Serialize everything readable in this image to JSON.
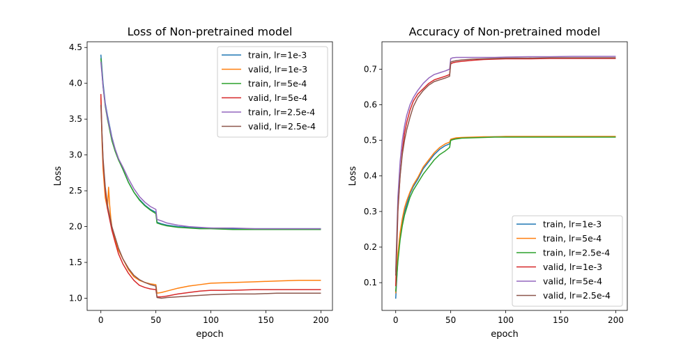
{
  "chart_data": [
    {
      "type": "line",
      "title": "Loss of Non-pretrained model",
      "xlabel": "epoch",
      "ylabel": "Loss",
      "xlim": [
        -12.5,
        210.5
      ],
      "ylim": [
        0.83,
        4.58
      ],
      "xticks": [
        0,
        50,
        100,
        150,
        200
      ],
      "yticks": [
        1.0,
        1.5,
        2.0,
        2.5,
        3.0,
        3.5,
        4.0,
        4.5
      ],
      "ytick_labels": [
        "1.0",
        "1.5",
        "2.0",
        "2.5",
        "3.0",
        "3.5",
        "4.0",
        "4.5"
      ],
      "grid": false,
      "legend_loc": "upper right",
      "series": [
        {
          "name": "train, lr=1e-3",
          "color": "#1f77b4",
          "x": [
            0,
            2,
            4,
            6,
            8,
            10,
            13,
            16,
            20,
            25,
            30,
            35,
            40,
            45,
            50,
            51,
            55,
            60,
            70,
            80,
            90,
            100,
            120,
            140,
            160,
            180,
            200
          ],
          "y": [
            4.4,
            4.0,
            3.72,
            3.55,
            3.4,
            3.25,
            3.08,
            2.95,
            2.8,
            2.62,
            2.48,
            2.38,
            2.3,
            2.24,
            2.2,
            2.06,
            2.04,
            2.02,
            2.0,
            1.99,
            1.98,
            1.98,
            1.97,
            1.97,
            1.97,
            1.97,
            1.97
          ]
        },
        {
          "name": "valid, lr=1e-3",
          "color": "#ff7f0e",
          "x": [
            0,
            1,
            2,
            4,
            6,
            7,
            8,
            9,
            10,
            12,
            15,
            20,
            25,
            30,
            35,
            40,
            45,
            50,
            51,
            55,
            60,
            70,
            80,
            90,
            100,
            120,
            140,
            160,
            180,
            200
          ],
          "y": [
            3.8,
            3.2,
            2.8,
            2.4,
            2.25,
            2.55,
            2.3,
            2.12,
            2.0,
            1.88,
            1.7,
            1.55,
            1.4,
            1.3,
            1.25,
            1.22,
            1.2,
            1.19,
            1.07,
            1.08,
            1.1,
            1.14,
            1.17,
            1.19,
            1.21,
            1.22,
            1.23,
            1.24,
            1.25,
            1.25
          ]
        },
        {
          "name": "train, lr=5e-4",
          "color": "#2ca02c",
          "x": [
            0,
            2,
            4,
            6,
            8,
            10,
            13,
            16,
            20,
            25,
            30,
            35,
            40,
            45,
            50,
            51,
            55,
            60,
            70,
            80,
            90,
            100,
            120,
            140,
            160,
            180,
            200
          ],
          "y": [
            4.35,
            3.95,
            3.68,
            3.5,
            3.35,
            3.2,
            3.05,
            2.93,
            2.8,
            2.62,
            2.48,
            2.37,
            2.29,
            2.23,
            2.18,
            2.05,
            2.03,
            2.01,
            1.99,
            1.98,
            1.97,
            1.97,
            1.96,
            1.96,
            1.96,
            1.96,
            1.96
          ]
        },
        {
          "name": "valid, lr=5e-4",
          "color": "#d62728",
          "x": [
            0,
            1,
            2,
            4,
            6,
            8,
            10,
            13,
            16,
            20,
            25,
            30,
            35,
            40,
            45,
            50,
            51,
            55,
            60,
            70,
            80,
            90,
            100,
            120,
            140,
            160,
            180,
            200
          ],
          "y": [
            3.85,
            3.3,
            2.9,
            2.5,
            2.25,
            2.1,
            1.95,
            1.78,
            1.62,
            1.48,
            1.35,
            1.25,
            1.18,
            1.15,
            1.13,
            1.12,
            1.02,
            1.02,
            1.03,
            1.06,
            1.08,
            1.1,
            1.11,
            1.11,
            1.12,
            1.12,
            1.12,
            1.12
          ]
        },
        {
          "name": "train, lr=2.5e-4",
          "color": "#9467bd",
          "x": [
            0,
            2,
            4,
            6,
            8,
            10,
            13,
            16,
            20,
            25,
            30,
            35,
            40,
            45,
            50,
            51,
            55,
            60,
            70,
            80,
            90,
            100,
            120,
            140,
            160,
            180,
            200
          ],
          "y": [
            4.3,
            3.95,
            3.7,
            3.52,
            3.38,
            3.24,
            3.08,
            2.95,
            2.83,
            2.67,
            2.53,
            2.42,
            2.34,
            2.28,
            2.24,
            2.1,
            2.08,
            2.05,
            2.02,
            2.0,
            1.99,
            1.98,
            1.98,
            1.97,
            1.97,
            1.97,
            1.97
          ]
        },
        {
          "name": "valid, lr=2.5e-4",
          "color": "#8c564b",
          "x": [
            0,
            1,
            2,
            4,
            6,
            8,
            10,
            13,
            16,
            20,
            25,
            30,
            35,
            40,
            45,
            50,
            51,
            55,
            60,
            70,
            80,
            90,
            100,
            120,
            140,
            160,
            180,
            200
          ],
          "y": [
            3.7,
            3.3,
            2.95,
            2.55,
            2.3,
            2.15,
            2.0,
            1.85,
            1.7,
            1.55,
            1.42,
            1.32,
            1.26,
            1.22,
            1.19,
            1.17,
            1.01,
            1.0,
            1.01,
            1.02,
            1.03,
            1.04,
            1.05,
            1.06,
            1.06,
            1.07,
            1.07,
            1.07
          ]
        }
      ]
    },
    {
      "type": "line",
      "title": "Accuracy of Non-pretrained model",
      "xlabel": "epoch",
      "ylabel": "Loss",
      "xlim": [
        -12.5,
        210.5
      ],
      "ylim": [
        0.022,
        0.777
      ],
      "xticks": [
        0,
        50,
        100,
        150,
        200
      ],
      "yticks": [
        0.1,
        0.2,
        0.3,
        0.4,
        0.5,
        0.6,
        0.7
      ],
      "ytick_labels": [
        "0.1",
        "0.2",
        "0.3",
        "0.4",
        "0.5",
        "0.6",
        "0.7"
      ],
      "grid": false,
      "legend_loc": "lower right",
      "series": [
        {
          "name": "train, lr=1e-3",
          "color": "#1f77b4",
          "x": [
            0,
            2,
            4,
            6,
            8,
            10,
            13,
            16,
            20,
            25,
            30,
            35,
            40,
            45,
            49,
            50,
            52,
            55,
            60,
            70,
            80,
            90,
            100,
            120,
            140,
            160,
            180,
            200
          ],
          "y": [
            0.055,
            0.17,
            0.23,
            0.27,
            0.3,
            0.32,
            0.35,
            0.37,
            0.39,
            0.42,
            0.44,
            0.46,
            0.475,
            0.485,
            0.49,
            0.5,
            0.503,
            0.505,
            0.507,
            0.508,
            0.509,
            0.51,
            0.51,
            0.51,
            0.51,
            0.51,
            0.51,
            0.51
          ]
        },
        {
          "name": "train, lr=5e-4",
          "color": "#ff7f0e",
          "x": [
            0,
            2,
            4,
            6,
            8,
            10,
            13,
            16,
            20,
            25,
            30,
            35,
            40,
            45,
            49,
            50,
            52,
            55,
            60,
            70,
            80,
            90,
            100,
            120,
            140,
            160,
            180,
            200
          ],
          "y": [
            0.07,
            0.18,
            0.24,
            0.28,
            0.31,
            0.33,
            0.355,
            0.375,
            0.395,
            0.425,
            0.445,
            0.465,
            0.48,
            0.49,
            0.495,
            0.503,
            0.505,
            0.507,
            0.508,
            0.509,
            0.51,
            0.51,
            0.511,
            0.511,
            0.511,
            0.511,
            0.511,
            0.511
          ]
        },
        {
          "name": "train, lr=2.5e-4",
          "color": "#2ca02c",
          "x": [
            0,
            2,
            4,
            6,
            8,
            10,
            13,
            16,
            20,
            25,
            30,
            35,
            40,
            45,
            49,
            50,
            52,
            55,
            60,
            70,
            80,
            90,
            100,
            120,
            140,
            160,
            180,
            200
          ],
          "y": [
            0.075,
            0.16,
            0.22,
            0.26,
            0.29,
            0.31,
            0.34,
            0.36,
            0.38,
            0.405,
            0.425,
            0.445,
            0.46,
            0.47,
            0.48,
            0.5,
            0.502,
            0.504,
            0.506,
            0.507,
            0.508,
            0.509,
            0.509,
            0.509,
            0.509,
            0.509,
            0.509,
            0.509
          ]
        },
        {
          "name": "valid, lr=1e-3",
          "color": "#d62728",
          "x": [
            0,
            2,
            4,
            6,
            8,
            10,
            13,
            16,
            20,
            25,
            30,
            35,
            40,
            45,
            49,
            50,
            52,
            55,
            60,
            70,
            80,
            90,
            100,
            120,
            140,
            160,
            180,
            200
          ],
          "y": [
            0.09,
            0.3,
            0.4,
            0.47,
            0.52,
            0.55,
            0.585,
            0.61,
            0.63,
            0.645,
            0.66,
            0.67,
            0.675,
            0.68,
            0.685,
            0.715,
            0.718,
            0.72,
            0.722,
            0.725,
            0.727,
            0.728,
            0.729,
            0.729,
            0.73,
            0.73,
            0.73,
            0.73
          ]
        },
        {
          "name": "valid, lr=5e-4",
          "color": "#9467bd",
          "x": [
            0,
            2,
            4,
            6,
            8,
            10,
            13,
            16,
            20,
            25,
            30,
            35,
            40,
            45,
            49,
            50,
            52,
            55,
            60,
            70,
            80,
            90,
            100,
            120,
            140,
            160,
            180,
            200
          ],
          "y": [
            0.13,
            0.34,
            0.44,
            0.5,
            0.54,
            0.57,
            0.6,
            0.62,
            0.64,
            0.66,
            0.675,
            0.685,
            0.69,
            0.695,
            0.7,
            0.73,
            0.732,
            0.733,
            0.733,
            0.733,
            0.733,
            0.733,
            0.734,
            0.735,
            0.735,
            0.736,
            0.736,
            0.736
          ]
        },
        {
          "name": "valid, lr=2.5e-4",
          "color": "#8c564b",
          "x": [
            0,
            2,
            4,
            6,
            8,
            10,
            13,
            16,
            20,
            25,
            30,
            35,
            40,
            45,
            49,
            50,
            52,
            55,
            60,
            70,
            80,
            90,
            100,
            120,
            140,
            160,
            180,
            200
          ],
          "y": [
            0.12,
            0.31,
            0.4,
            0.46,
            0.5,
            0.53,
            0.565,
            0.595,
            0.62,
            0.64,
            0.655,
            0.665,
            0.67,
            0.675,
            0.68,
            0.72,
            0.722,
            0.724,
            0.726,
            0.728,
            0.729,
            0.73,
            0.731,
            0.731,
            0.732,
            0.732,
            0.732,
            0.732
          ]
        }
      ]
    }
  ]
}
